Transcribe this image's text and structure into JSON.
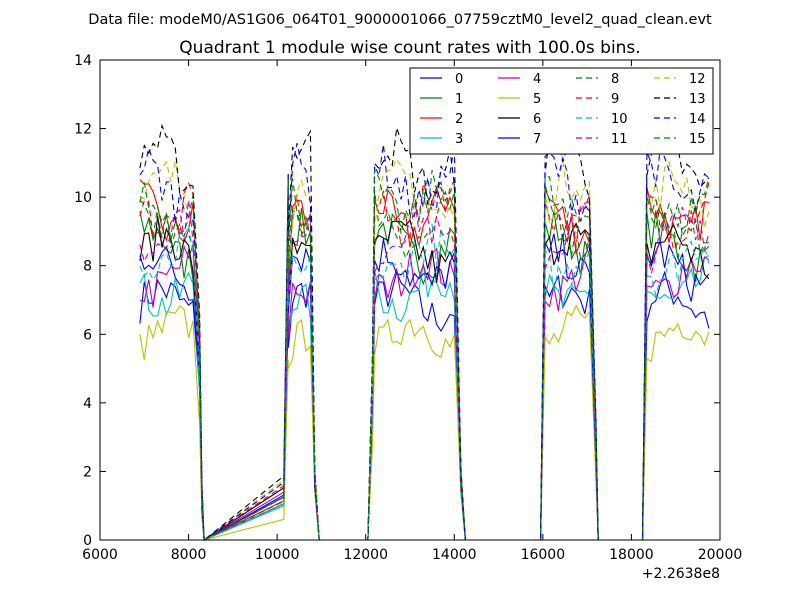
{
  "suptitle": "Data file: modeM0/AS1G06_064T01_9000001066_07759cztM0_level2_quad_clean.evt",
  "chart_data": {
    "type": "line",
    "title": "Quadrant 1 module wise count rates with 100.0s bins.",
    "xlabel": "",
    "ylabel": "",
    "x_offset_label": "+2.2638e8",
    "xlim": [
      6000,
      20000
    ],
    "ylim": [
      0,
      14
    ],
    "x_ticks": [
      6000,
      8000,
      10000,
      12000,
      14000,
      16000,
      18000,
      20000
    ],
    "y_ticks": [
      0,
      2,
      4,
      6,
      8,
      10,
      12,
      14
    ],
    "grid": false,
    "legend_position": "top-right",
    "segments": [
      [
        6900,
        8150
      ],
      [
        10250,
        10750
      ],
      [
        12200,
        14050
      ],
      [
        16050,
        17100
      ],
      [
        18350,
        19800
      ]
    ],
    "transitions": [
      [
        6900,
        7000,
        8150,
        8250,
        8300,
        8350,
        10150,
        10250,
        10750,
        10850,
        10950,
        12050,
        12150,
        12200,
        14050,
        14150,
        14250,
        15950,
        16050,
        17100,
        17200,
        17250,
        18250,
        18350
      ],
      [
        1,
        1,
        1,
        0.6,
        0.15,
        0,
        0.15,
        0.8,
        1,
        0.2,
        0,
        0,
        0.5,
        1,
        1,
        0.2,
        0,
        0,
        1,
        1,
        0.3,
        0,
        0,
        1
      ]
    ],
    "series": [
      {
        "name": "0",
        "color": "#0000ff",
        "dash": "solid",
        "level": 6.9
      },
      {
        "name": "1",
        "color": "#008000",
        "dash": "solid",
        "level": 8.6
      },
      {
        "name": "2",
        "color": "#ff0000",
        "dash": "solid",
        "level": 9.5
      },
      {
        "name": "3",
        "color": "#00bfbf",
        "dash": "solid",
        "level": 7.3
      },
      {
        "name": "4",
        "color": "#bf00bf",
        "dash": "solid",
        "level": 7.7
      },
      {
        "name": "5",
        "color": "#bfbf00",
        "dash": "solid",
        "level": 6.0
      },
      {
        "name": "6",
        "color": "#000000",
        "dash": "solid",
        "level": 8.4
      },
      {
        "name": "7",
        "color": "#0000ff",
        "dash": "solid",
        "level": 7.9
      },
      {
        "name": "8",
        "color": "#008000",
        "dash": "dashed",
        "level": 9.2
      },
      {
        "name": "9",
        "color": "#ff0000",
        "dash": "dashed",
        "level": 9.7
      },
      {
        "name": "10",
        "color": "#00bfbf",
        "dash": "dashed",
        "level": 8.2
      },
      {
        "name": "11",
        "color": "#bf00bf",
        "dash": "dashed",
        "level": 8.9
      },
      {
        "name": "12",
        "color": "#bfbf00",
        "dash": "dashed",
        "level": 10.0
      },
      {
        "name": "13",
        "color": "#000000",
        "dash": "dashed",
        "level": 10.9
      },
      {
        "name": "14",
        "color": "#0000ff",
        "dash": "dashed",
        "level": 10.4
      },
      {
        "name": "15",
        "color": "#008000",
        "dash": "dashed",
        "level": 9.9
      }
    ]
  }
}
